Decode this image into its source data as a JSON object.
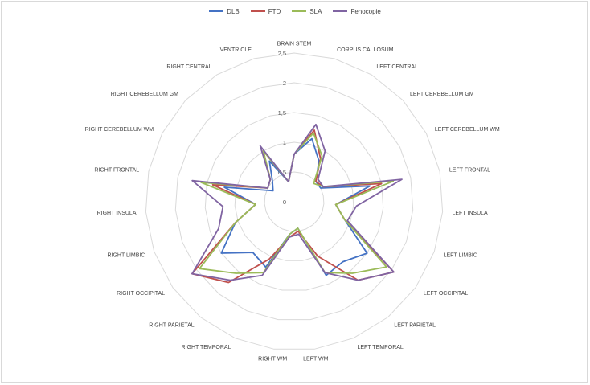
{
  "chart_data": {
    "type": "radar",
    "categories": [
      "BRAIN STEM",
      "CORPUS CALLOSUM",
      "LEFT CENTRAL",
      "LEFT CEREBELLUM GM",
      "LEFT CEREBELLUM WM",
      "LEFT FRONTAL",
      "LEFT INSULA",
      "LEFT LIMBIC",
      "LEFT OCCIPITAL",
      "LEFT PARIETAL",
      "LEFT TEMPORAL",
      "LEFT WM",
      "RIGHT WM",
      "RIGHT TEMPORAL",
      "RIGHT PARIETAL",
      "RIGHT OCCIPITAL",
      "RIGHT LIMBIC",
      "RIGHT INSULA",
      "RIGHT FRONTAL",
      "RIGHT CEREBELLUM WM",
      "RIGHT CEREBELLUM GM",
      "RIGHT CENTRAL",
      "VENTRICLE"
    ],
    "ticks": [
      "0",
      "0,5",
      "1",
      "1,5",
      "2",
      "2,5"
    ],
    "rmax": 2.5,
    "series": [
      {
        "name": "DLB",
        "color": "#4472c4",
        "values": [
          0.8,
          1.1,
          0.8,
          0.5,
          0.5,
          1.3,
          0.7,
          0.9,
          1.5,
          1.3,
          1.35,
          0.45,
          0.55,
          1.2,
          1.1,
          1.5,
          1.05,
          0.65,
          1.2,
          0.4,
          0.5,
          0.8,
          0.35
        ]
      },
      {
        "name": "FTD",
        "color": "#c0504d",
        "values": [
          0.8,
          1.25,
          0.85,
          0.5,
          0.55,
          1.5,
          0.7,
          0.9,
          2.05,
          1.7,
          1.0,
          0.5,
          0.6,
          1.05,
          1.75,
          2.1,
          1.05,
          0.65,
          1.4,
          0.5,
          0.55,
          1.0,
          0.35
        ]
      },
      {
        "name": "SLA",
        "color": "#9bbb59",
        "values": [
          0.8,
          1.2,
          0.9,
          0.45,
          0.55,
          1.7,
          0.7,
          0.9,
          1.9,
          1.55,
          1.3,
          0.45,
          0.55,
          1.3,
          1.55,
          1.95,
          1.05,
          0.65,
          1.6,
          0.5,
          0.55,
          1.0,
          0.35
        ]
      },
      {
        "name": "Fenocopie",
        "color": "#8064a2",
        "values": [
          0.8,
          1.35,
          1.0,
          0.55,
          0.55,
          1.85,
          1.05,
          0.95,
          2.05,
          1.7,
          1.3,
          0.55,
          0.6,
          1.35,
          1.7,
          2.1,
          1.35,
          1.2,
          1.75,
          0.5,
          0.55,
          1.1,
          0.35
        ]
      }
    ],
    "title": "",
    "legend_position": "top",
    "grid": true
  }
}
